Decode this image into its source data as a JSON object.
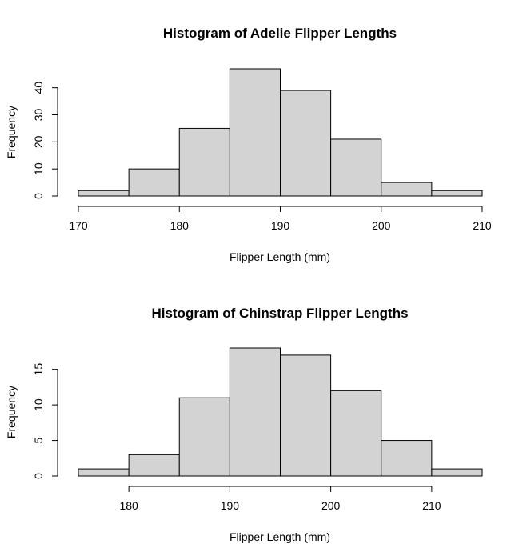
{
  "chart_data": [
    {
      "type": "bar",
      "title": "Histogram of Adelie Flipper Lengths",
      "xlabel": "Flipper Length (mm)",
      "ylabel": "Frequency",
      "bin_edges": [
        170,
        175,
        180,
        185,
        190,
        195,
        200,
        205,
        210
      ],
      "values": [
        2,
        10,
        25,
        47,
        39,
        21,
        5,
        2
      ],
      "x_ticks": [
        170,
        180,
        190,
        200,
        210
      ],
      "y_ticks": [
        0,
        10,
        20,
        30,
        40
      ],
      "xlim": [
        170,
        210
      ],
      "ylim": [
        0,
        47
      ],
      "bar_color": "#d3d3d3",
      "grid": false
    },
    {
      "type": "bar",
      "title": "Histogram of Chinstrap Flipper Lengths",
      "xlabel": "Flipper Length (mm)",
      "ylabel": "Frequency",
      "bin_edges": [
        175,
        180,
        185,
        190,
        195,
        200,
        205,
        210,
        215
      ],
      "values": [
        1,
        3,
        11,
        18,
        17,
        12,
        5,
        1
      ],
      "x_ticks": [
        180,
        190,
        200,
        210
      ],
      "y_ticks": [
        0,
        5,
        10,
        15
      ],
      "xlim": [
        175,
        215
      ],
      "ylim": [
        0,
        18
      ],
      "bar_color": "#d3d3d3",
      "grid": false
    }
  ]
}
